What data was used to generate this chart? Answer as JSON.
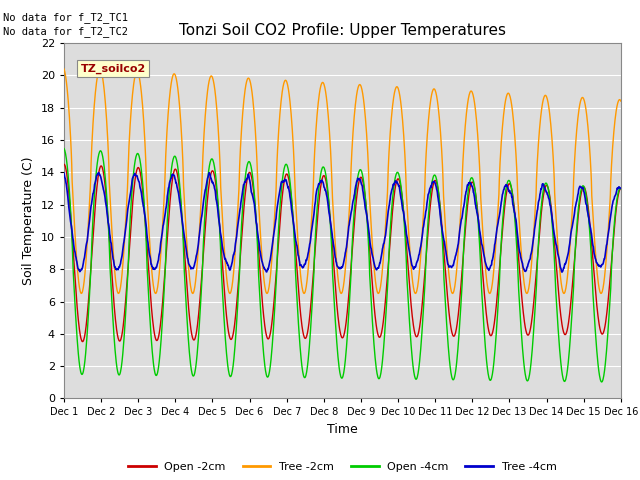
{
  "title": "Tonzi Soil CO2 Profile: Upper Temperatures",
  "xlabel": "Time",
  "ylabel": "Soil Temperature (C)",
  "xtick_labels": [
    "Dec 1",
    "Dec 2",
    "Dec 3",
    "Dec 4",
    "Dec 5",
    "Dec 6",
    "Dec 7",
    "Dec 8",
    "Dec 9",
    "Dec 10",
    "Dec 11",
    "Dec 12",
    "Dec 13",
    "Dec 14",
    "Dec 15",
    "Dec 16"
  ],
  "ylim": [
    0,
    22
  ],
  "yticks": [
    0,
    2,
    4,
    6,
    8,
    10,
    12,
    14,
    16,
    18,
    20,
    22
  ],
  "annotation1": "No data for f_T2_TC1",
  "annotation2": "No data for f_T2_TC2",
  "box_label": "TZ_soilco2",
  "legend_entries": [
    "Open -2cm",
    "Tree -2cm",
    "Open -4cm",
    "Tree -4cm"
  ],
  "colors": [
    "#cc0000",
    "#ff9900",
    "#00cc00",
    "#0000cc"
  ],
  "bg_color": "#dddddd",
  "n_days": 15,
  "n_points_per_day": 96
}
